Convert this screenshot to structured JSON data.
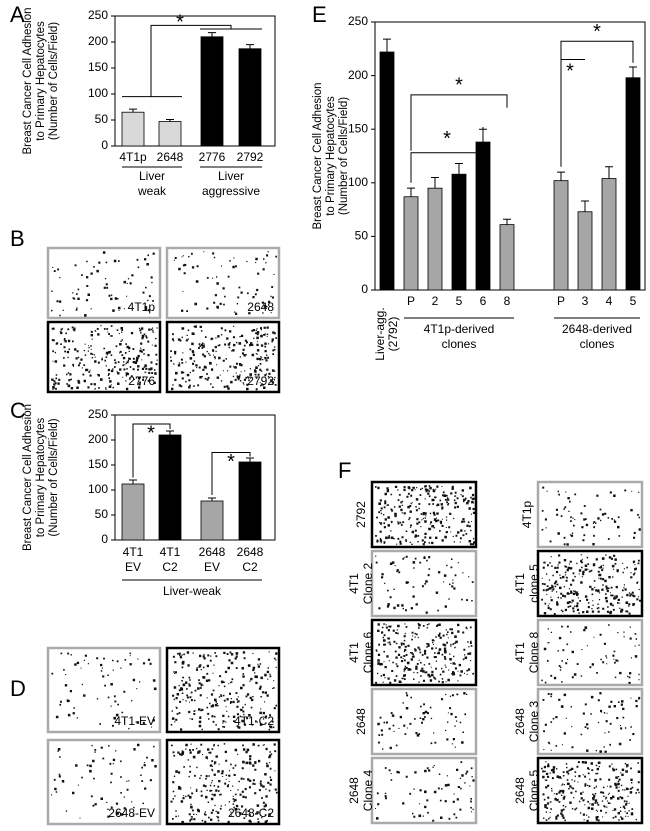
{
  "chart_data": [
    {
      "type": "bar",
      "panel": "A",
      "y_label": [
        "Breast Cancer Cell Adhesion",
        "to Primary Hepatocytes",
        "(Number of Cells/Field)"
      ],
      "categories": [
        [
          "4T1p"
        ],
        [
          "2648"
        ],
        [
          "2776"
        ],
        [
          "2792"
        ]
      ],
      "values": [
        65,
        47,
        210,
        187
      ],
      "errors": [
        6,
        4,
        8,
        8
      ],
      "colors": [
        "#d9d9d9",
        "#d9d9d9",
        "#000000",
        "#000000"
      ],
      "groups": [
        [
          "Liver",
          "weak"
        ],
        [
          "Liver",
          "aggressive"
        ]
      ],
      "annotations": [
        "*"
      ],
      "ylim": [
        0,
        250
      ],
      "yticks": [
        0,
        50,
        100,
        150,
        200,
        250
      ]
    },
    {
      "type": "bar",
      "panel": "C",
      "y_label": [
        "Breast Cancer Cell Adhesion",
        "to Primary Hepatocytes",
        "(Number of Cells/Field)"
      ],
      "categories": [
        [
          "4T1",
          "EV"
        ],
        [
          "4T1",
          "C2"
        ],
        [
          "2648",
          "EV"
        ],
        [
          "2648",
          "C2"
        ]
      ],
      "values": [
        112,
        210,
        78,
        156
      ],
      "errors": [
        8,
        8,
        6,
        8
      ],
      "colors": [
        "#a6a6a6",
        "#000000",
        "#a6a6a6",
        "#000000"
      ],
      "groups": [
        [
          "Liver-weak"
        ]
      ],
      "annotations": [
        "*",
        "*"
      ],
      "ylim": [
        0,
        250
      ],
      "yticks": [
        0,
        50,
        100,
        150,
        200,
        250
      ]
    },
    {
      "type": "bar",
      "panel": "E",
      "y_label": [
        "Breast Cancer Cell Adhesion",
        "to Primary Hepatocytes",
        "(Number of Cells/Field)"
      ],
      "categories": [
        [
          "Liver-agg.",
          "(2792)"
        ],
        [
          "P"
        ],
        [
          "2"
        ],
        [
          "5"
        ],
        [
          "6"
        ],
        [
          "8"
        ],
        [
          "P"
        ],
        [
          "3"
        ],
        [
          "4"
        ],
        [
          "5"
        ]
      ],
      "values": [
        222,
        87,
        95,
        108,
        138,
        61,
        102,
        73,
        104,
        198
      ],
      "errors": [
        12,
        8,
        10,
        10,
        12,
        5,
        8,
        10,
        11,
        10
      ],
      "colors": [
        "#000000",
        "#a6a6a6",
        "#a6a6a6",
        "#000000",
        "#000000",
        "#a6a6a6",
        "#a6a6a6",
        "#a6a6a6",
        "#a6a6a6",
        "#000000"
      ],
      "groups": [
        [
          "4T1p-derived",
          "clones"
        ],
        [
          "2648-derived",
          "clones"
        ]
      ],
      "annotations": [
        "*",
        "*",
        "*",
        "*"
      ],
      "ylim": [
        0,
        250
      ],
      "yticks": [
        0,
        50,
        100,
        150,
        200,
        250
      ]
    }
  ],
  "image_panels": [
    {
      "letter": "B",
      "labels": [
        [
          "4T1p"
        ],
        [
          "2648"
        ],
        [
          "2776"
        ],
        [
          "2792"
        ]
      ],
      "frames": [
        "#aaaaaa",
        "#aaaaaa",
        "#000000",
        "#000000"
      ]
    },
    {
      "letter": "D",
      "labels": [
        [
          "4T1-EV"
        ],
        [
          "4T1-C2"
        ],
        [
          "2648-EV"
        ],
        [
          "2648-C2"
        ]
      ],
      "frames": [
        "#aaaaaa",
        "#000000",
        "#aaaaaa",
        "#000000"
      ]
    },
    {
      "letter": "F",
      "labels": [
        [
          "2792"
        ],
        [
          "4T1p"
        ],
        [
          "4T1",
          "Clone 2"
        ],
        [
          "4T1",
          "clone 5"
        ],
        [
          "4T1",
          "Clone 6"
        ],
        [
          "4T1",
          "Clone 8"
        ],
        [
          "2648"
        ],
        [
          "2648",
          "Clone 3"
        ],
        [
          "2648",
          "Clone 4"
        ],
        [
          "2648",
          "Clone 5"
        ]
      ],
      "frames": [
        "#000000",
        "#aaaaaa",
        "#aaaaaa",
        "#000000",
        "#000000",
        "#aaaaaa",
        "#aaaaaa",
        "#aaaaaa",
        "#aaaaaa",
        "#000000"
      ]
    }
  ]
}
